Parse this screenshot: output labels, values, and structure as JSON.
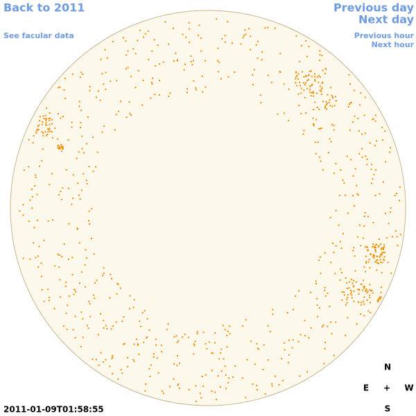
{
  "nav": {
    "back": "Back to 2011",
    "facular": "See facular data",
    "prev_day": "Previous day",
    "next_day": "Next day",
    "prev_hour": "Previous hour",
    "next_hour": "Next hour"
  },
  "timestamp": "2011-01-09T01:58:55",
  "compass": {
    "n": "N",
    "e": "E",
    "center": "+",
    "w": "W",
    "s": "S"
  }
}
